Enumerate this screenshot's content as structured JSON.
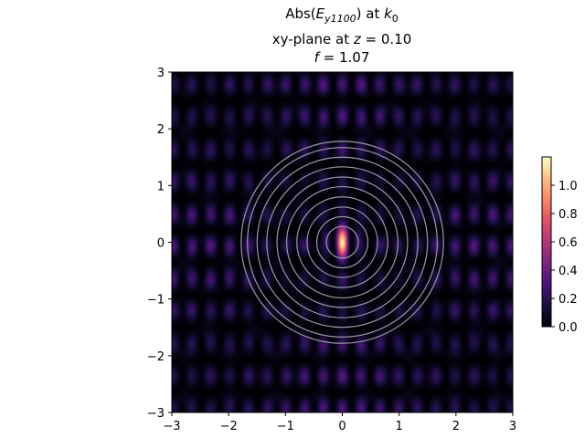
{
  "chart_data": {
    "type": "heatmap",
    "title": {
      "line1_prefix": "Abs(",
      "line1_sym": "E",
      "line1_sub": "y1100",
      "line1_mid": ") at ",
      "line1_k": "k",
      "line1_k_sub": "0",
      "line2_prefix": "xy-plane at ",
      "line2_var": "z",
      "line2_eq": " = 0.10",
      "line3_var": "f",
      "line3_eq": " = 1.07"
    },
    "xlabel": "",
    "ylabel": "",
    "xlim": [
      -3,
      3
    ],
    "ylim": [
      -3,
      3
    ],
    "xticks": [
      -3,
      -2,
      -1,
      0,
      1,
      2,
      3
    ],
    "yticks": [
      -3,
      -2,
      -1,
      0,
      1,
      2,
      3
    ],
    "xtick_labels": [
      "−3",
      "−2",
      "−1",
      "0",
      "1",
      "2",
      "3"
    ],
    "ytick_labels": [
      "−3",
      "−2",
      "−1",
      "0",
      "1",
      "2",
      "3"
    ],
    "colormap": "magma",
    "colorbar": {
      "vmin": 0.0,
      "vmax": 1.2,
      "ticks": [
        0.0,
        0.2,
        0.4,
        0.6,
        0.8,
        1.0
      ],
      "tick_labels": [
        "0.0",
        "0.2",
        "0.4",
        "0.6",
        "0.8",
        "1.0"
      ]
    },
    "contour_radii": [
      0.28,
      0.45,
      0.62,
      0.8,
      0.98,
      1.15,
      1.33,
      1.5,
      1.67,
      1.78
    ],
    "contour_color": "#9a9aa6",
    "center_peak": 1.18,
    "grid": false
  }
}
